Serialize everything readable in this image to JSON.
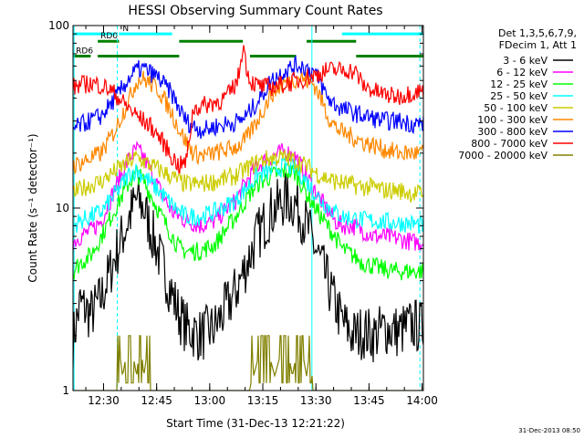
{
  "chart_data": {
    "type": "line",
    "title": "HESSI Observing Summary Count Rates",
    "xlabel": "Start Time (31-Dec-13 12:21:22)",
    "ylabel": "Count Rate (s⁻¹ detector⁻¹)",
    "x_unit": "minutes after 12:21:22",
    "xlim": [
      0,
      99
    ],
    "ylim": [
      1,
      100
    ],
    "y_scale": "log",
    "x_ticks": [
      "12:30",
      "12:45",
      "13:00",
      "13:15",
      "13:30",
      "13:45",
      "14:00"
    ],
    "y_ticks": [
      "1",
      "10",
      "100"
    ],
    "legend_title": [
      "Det 1,3,5,6,7,9,",
      "FDecim 1, Att 1"
    ],
    "legend_position": "right",
    "footer": "31-Dec-2013 08:50",
    "series": [
      {
        "name": "3 - 6 keV",
        "color": "#000000",
        "x": [
          0,
          2,
          5,
          8,
          12,
          16,
          18,
          20,
          25,
          30,
          32,
          36,
          40,
          46,
          50,
          52,
          56,
          60,
          63,
          66,
          70,
          74,
          76,
          79,
          82,
          85,
          88,
          92,
          96,
          99
        ],
        "y": [
          1.9,
          3.0,
          2.6,
          3.2,
          5.5,
          9.0,
          11.2,
          10.0,
          5.0,
          2.6,
          2.2,
          2.0,
          2.2,
          3.5,
          5.5,
          7.0,
          9.5,
          11.2,
          10.5,
          8.0,
          5.0,
          3.0,
          2.4,
          2.0,
          2.1,
          2.0,
          2.2,
          2.1,
          2.3,
          2.2
        ]
      },
      {
        "name": "6 - 12 keV",
        "color": "#ff00ff",
        "x": [
          0,
          2,
          5,
          8,
          12,
          16,
          18,
          20,
          25,
          28,
          30,
          32,
          36,
          40,
          46,
          50,
          52,
          56,
          60,
          63,
          66,
          70,
          74,
          76,
          79,
          82,
          85,
          88,
          92,
          96,
          99
        ],
        "y": [
          6.5,
          7.0,
          7.5,
          8.5,
          13,
          19,
          21,
          19,
          12,
          9.5,
          9.0,
          8.5,
          8.0,
          8.5,
          11,
          15,
          17,
          19,
          20.5,
          19,
          15,
          11,
          8.5,
          8.0,
          8.0,
          7.5,
          7.0,
          7.0,
          6.8,
          6.5,
          6.5
        ]
      },
      {
        "name": "12 - 25 keV",
        "color": "#00ff00",
        "x": [
          0,
          2,
          5,
          8,
          12,
          16,
          18,
          20,
          25,
          30,
          32,
          36,
          40,
          46,
          50,
          52,
          56,
          60,
          63,
          66,
          70,
          74,
          76,
          79,
          82,
          85,
          88,
          92,
          96,
          99
        ],
        "y": [
          4.5,
          5.0,
          5.5,
          7.0,
          10,
          14,
          15.5,
          14,
          9,
          6.0,
          5.8,
          5.8,
          6.3,
          9,
          12,
          13.5,
          15,
          16,
          15.5,
          12,
          9,
          7.0,
          6.0,
          5.5,
          5.0,
          4.8,
          4.6,
          4.5,
          4.5,
          4.5
        ]
      },
      {
        "name": "25 - 50 keV",
        "color": "#00ffff",
        "x": [
          0,
          2,
          5,
          8,
          12,
          16,
          18,
          20,
          25,
          30,
          32,
          36,
          40,
          46,
          50,
          52,
          56,
          60,
          63,
          66,
          70,
          74,
          76,
          79,
          82,
          85,
          88,
          92,
          96,
          99
        ],
        "y": [
          8.0,
          8.5,
          9.0,
          9.5,
          12,
          15.5,
          16,
          15,
          12,
          9.5,
          9.0,
          9.0,
          9.5,
          11,
          13.5,
          15,
          16,
          17,
          16.5,
          14,
          11,
          9.5,
          9.0,
          8.8,
          8.6,
          8.5,
          8.4,
          8.3,
          8.2,
          8.0
        ]
      },
      {
        "name": "50 - 100 keV",
        "color": "#cccc00",
        "x": [
          0,
          3,
          8,
          12,
          16,
          18,
          20,
          25,
          30,
          32,
          36,
          40,
          46,
          50,
          54,
          58,
          62,
          66,
          70,
          74,
          78,
          82,
          85,
          88,
          92,
          96,
          99
        ],
        "y": [
          12,
          13,
          14,
          16,
          18,
          19,
          18,
          16,
          14,
          13.5,
          13.5,
          14,
          15,
          17,
          18.5,
          19,
          18.5,
          17,
          15,
          14,
          13.5,
          13,
          13,
          12.5,
          12.5,
          12,
          12
        ]
      },
      {
        "name": "100 - 300 keV",
        "color": "#ff8800",
        "x": [
          0,
          3,
          8,
          12,
          16,
          18,
          20,
          24,
          28,
          30,
          32,
          34,
          36,
          38,
          40,
          44,
          47,
          48,
          49,
          52,
          56,
          60,
          64,
          68,
          70,
          72,
          74,
          76,
          78,
          80,
          82,
          85,
          88,
          92,
          96,
          99
        ],
        "y": [
          17,
          18,
          20,
          27,
          40,
          50,
          51,
          45,
          33,
          27,
          23,
          20,
          19.5,
          19.5,
          20,
          21,
          22,
          23,
          24,
          30,
          42,
          49,
          52,
          48,
          40,
          32,
          28,
          26,
          25,
          24,
          23,
          22,
          21,
          20,
          20,
          20
        ]
      },
      {
        "name": "300 - 800 keV",
        "color": "#0000ff",
        "x": [
          0,
          3,
          8,
          12,
          16,
          18,
          20,
          24,
          28,
          30,
          32,
          34,
          36,
          38,
          40,
          44,
          47,
          48,
          49,
          52,
          56,
          60,
          64,
          68,
          70,
          72,
          74,
          76,
          78,
          80,
          82,
          85,
          88,
          92,
          96,
          99
        ],
        "y": [
          27,
          29,
          32,
          40,
          52,
          57,
          58,
          52,
          42,
          35,
          30,
          28,
          27,
          27,
          28,
          29,
          30,
          31,
          32,
          38,
          50,
          57,
          61,
          56,
          48,
          40,
          37,
          35,
          34,
          33,
          32,
          31,
          30,
          30,
          29,
          29
        ]
      },
      {
        "name": "800 - 7000 keV",
        "color": "#ff0000",
        "x": [
          0,
          2,
          4,
          6,
          8,
          10,
          12,
          14,
          16,
          18,
          20,
          22,
          24,
          26,
          28,
          30,
          32,
          34,
          36,
          38,
          40,
          42,
          44,
          46,
          47,
          48,
          49,
          50,
          52,
          54,
          56,
          58,
          60,
          62,
          64,
          66,
          68,
          70,
          72,
          74,
          76,
          78,
          80,
          82,
          84,
          86,
          88,
          90,
          92,
          94,
          96,
          99
        ],
        "y": [
          46,
          47,
          48,
          48,
          47,
          45,
          42,
          38,
          35,
          32,
          30,
          28,
          25,
          22,
          19,
          17,
          18,
          35,
          36,
          37,
          38,
          39,
          42,
          48,
          55,
          80,
          60,
          50,
          47,
          46,
          46,
          47,
          48,
          49,
          50,
          52,
          53,
          55,
          57,
          57,
          57,
          57,
          55,
          47,
          45,
          43,
          42,
          41,
          41,
          42,
          43,
          44
        ]
      },
      {
        "name": "7000 - 20000 keV",
        "color": "#808000",
        "x": [
          0,
          12.4,
          12.6,
          14,
          16,
          18,
          19,
          20,
          21.6,
          21.8,
          30,
          50,
          50.4,
          51,
          54,
          57,
          60,
          62,
          64,
          66,
          67.4,
          67.6,
          99
        ],
        "y": [
          1.0,
          1.0,
          2.0,
          1.2,
          2.0,
          1.2,
          2.0,
          1.2,
          2.0,
          1.0,
          1.0,
          1.0,
          2.0,
          1.2,
          2.0,
          1.2,
          2.0,
          1.2,
          2.0,
          1.2,
          2.0,
          1.0,
          1.0
        ]
      }
    ],
    "flag_bars": [
      {
        "label": "N",
        "color": "#00ffff",
        "level": 90,
        "segments": [
          [
            0,
            12
          ],
          [
            13,
            28
          ],
          [
            76,
            99
          ]
        ]
      },
      {
        "label": "RD0",
        "color": "#008000",
        "level": 82,
        "segments": [
          [
            7,
            13
          ]
        ]
      },
      {
        "label": "RD6",
        "color": "#008000",
        "level": 68,
        "segments": [
          [
            7,
            30
          ],
          [
            50,
            63
          ],
          [
            80,
            99
          ]
        ]
      },
      {
        "label": "",
        "color": "#008000",
        "level": 82,
        "segments": [
          [
            30,
            48
          ],
          [
            66,
            80
          ]
        ]
      },
      {
        "label": "",
        "color": "#008000",
        "level": 68,
        "segments": [
          [
            0,
            5
          ]
        ]
      }
    ],
    "vertical_markers": [
      {
        "x": 0.3,
        "color": "#00ffff",
        "style": "solid"
      },
      {
        "x": 12.5,
        "color": "#00ffff",
        "style": "dashed"
      },
      {
        "x": 67.5,
        "color": "#00ffff",
        "style": "solid"
      },
      {
        "x": 98,
        "color": "#00ffff",
        "style": "dashed"
      }
    ]
  }
}
